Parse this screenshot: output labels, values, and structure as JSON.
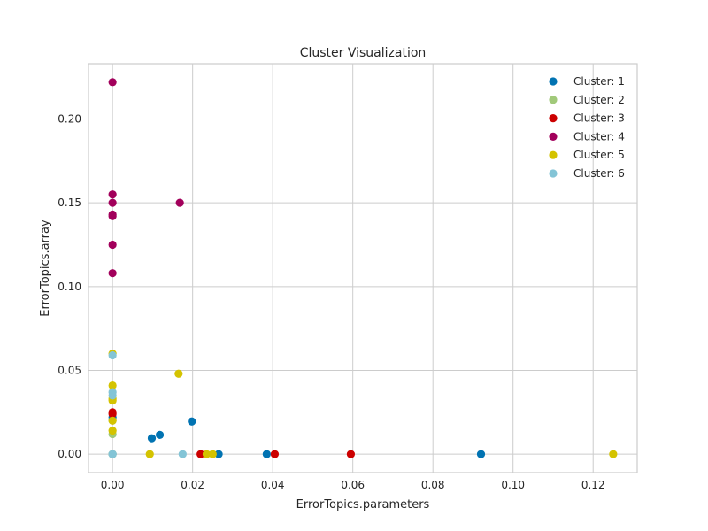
{
  "chart_data": {
    "type": "scatter",
    "title": "Cluster Visualization",
    "xlabel": "ErrorTopics.parameters",
    "ylabel": "ErrorTopics.array",
    "xlim": [
      -0.006,
      0.131
    ],
    "ylim": [
      -0.011,
      0.233
    ],
    "xticks": [
      0.0,
      0.02,
      0.04,
      0.06,
      0.08,
      0.1,
      0.12
    ],
    "xtick_labels": [
      "0.00",
      "0.02",
      "0.04",
      "0.06",
      "0.08",
      "0.10",
      "0.12"
    ],
    "yticks": [
      0.0,
      0.05,
      0.1,
      0.15,
      0.2
    ],
    "ytick_labels": [
      "0.00",
      "0.05",
      "0.10",
      "0.15",
      "0.20"
    ],
    "grid": true,
    "legend_position": "top-right",
    "series": [
      {
        "name": "Cluster: 1",
        "color": "#0173b2",
        "points": [
          [
            0,
            0
          ],
          [
            0,
            0.022
          ],
          [
            0.0098,
            0.0095
          ],
          [
            0.0118,
            0.0115
          ],
          [
            0.0198,
            0.0195
          ],
          [
            0.0265,
            0
          ],
          [
            0.0385,
            0
          ],
          [
            0.092,
            0
          ]
        ]
      },
      {
        "name": "Cluster: 2",
        "color": "#a1c97a",
        "points": [
          [
            0,
            0.02
          ],
          [
            0,
            0.012
          ],
          [
            0,
            0
          ]
        ]
      },
      {
        "name": "Cluster: 3",
        "color": "#cc0000",
        "points": [
          [
            0,
            0.025
          ],
          [
            0,
            0.024
          ],
          [
            0.022,
            0
          ],
          [
            0.0405,
            0
          ],
          [
            0.0595,
            0
          ]
        ]
      },
      {
        "name": "Cluster: 4",
        "color": "#a2005b",
        "points": [
          [
            0,
            0.222
          ],
          [
            0,
            0.155
          ],
          [
            0,
            0.15
          ],
          [
            0,
            0.143
          ],
          [
            0,
            0.142
          ],
          [
            0,
            0.125
          ],
          [
            0,
            0.108
          ],
          [
            0.0168,
            0.15
          ]
        ]
      },
      {
        "name": "Cluster: 5",
        "color": "#d4c300",
        "points": [
          [
            0,
            0.06
          ],
          [
            0,
            0.041
          ],
          [
            0,
            0.033
          ],
          [
            0,
            0.032
          ],
          [
            0,
            0.02
          ],
          [
            0,
            0.014
          ],
          [
            0.0165,
            0.048
          ],
          [
            0.0093,
            0
          ],
          [
            0.0235,
            0
          ],
          [
            0.025,
            0
          ],
          [
            0.125,
            0
          ]
        ]
      },
      {
        "name": "Cluster: 6",
        "color": "#83c4d6",
        "points": [
          [
            0,
            0.059
          ],
          [
            0,
            0.037
          ],
          [
            0,
            0.035
          ],
          [
            0,
            0
          ],
          [
            0.0175,
            0
          ]
        ]
      }
    ]
  }
}
